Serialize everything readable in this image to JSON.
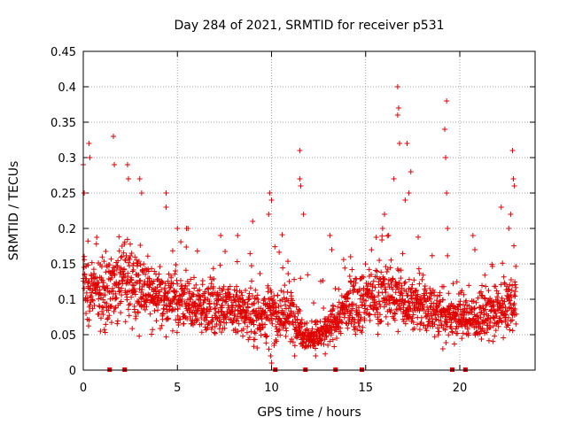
{
  "chart_data": {
    "type": "scatter",
    "title": "Day 284 of 2021, SRMTID for receiver p531",
    "xlabel": "GPS time / hours",
    "ylabel": "SRMTID / TECUs",
    "xlim": [
      0,
      24
    ],
    "ylim": [
      0,
      0.45
    ],
    "x_ticks": [
      0,
      5,
      10,
      15,
      20
    ],
    "x_tick_labels": [
      "0",
      "5",
      "10",
      "15",
      "20"
    ],
    "y_ticks": [
      0,
      0.05,
      0.1,
      0.15,
      0.2,
      0.25,
      0.3,
      0.35,
      0.4,
      0.45
    ],
    "y_tick_labels": [
      "0",
      "0.05",
      "0.1",
      "0.15",
      "0.2",
      "0.25",
      "0.3",
      "0.35",
      "0.4",
      "0.45"
    ],
    "grid": true,
    "marker": "plus",
    "series_color": "#e00000",
    "zero_markers_x": [
      1.4,
      2.2,
      10.2,
      11.8,
      13.4,
      14.8,
      19.6,
      20.3
    ],
    "envelope": {
      "hours": [
        0,
        1,
        2,
        3,
        4,
        5,
        6,
        7,
        8,
        9,
        10,
        11,
        12,
        13,
        14,
        15,
        16,
        17,
        18,
        19,
        20,
        21,
        22,
        23
      ],
      "median": [
        0.12,
        0.11,
        0.13,
        0.12,
        0.1,
        0.1,
        0.09,
        0.09,
        0.085,
        0.08,
        0.08,
        0.08,
        0.045,
        0.055,
        0.09,
        0.1,
        0.11,
        0.1,
        0.09,
        0.08,
        0.075,
        0.075,
        0.08,
        0.1
      ],
      "spread": [
        0.04,
        0.04,
        0.045,
        0.04,
        0.035,
        0.035,
        0.03,
        0.03,
        0.03,
        0.03,
        0.035,
        0.035,
        0.015,
        0.02,
        0.03,
        0.035,
        0.035,
        0.035,
        0.03,
        0.03,
        0.025,
        0.025,
        0.03,
        0.035
      ]
    },
    "spikes": [
      {
        "x": 0.0,
        "y": 0.29
      },
      {
        "x": 0.05,
        "y": 0.25
      },
      {
        "x": 0.3,
        "y": 0.32
      },
      {
        "x": 0.35,
        "y": 0.3
      },
      {
        "x": 1.6,
        "y": 0.33
      },
      {
        "x": 1.65,
        "y": 0.29
      },
      {
        "x": 2.35,
        "y": 0.29
      },
      {
        "x": 2.4,
        "y": 0.27
      },
      {
        "x": 3.0,
        "y": 0.27
      },
      {
        "x": 3.1,
        "y": 0.25
      },
      {
        "x": 4.4,
        "y": 0.25
      },
      {
        "x": 4.4,
        "y": 0.23
      },
      {
        "x": 5.0,
        "y": 0.2
      },
      {
        "x": 9.9,
        "y": 0.25
      },
      {
        "x": 10.0,
        "y": 0.24
      },
      {
        "x": 9.85,
        "y": 0.22
      },
      {
        "x": 11.5,
        "y": 0.31
      },
      {
        "x": 11.5,
        "y": 0.27
      },
      {
        "x": 11.55,
        "y": 0.26
      },
      {
        "x": 11.7,
        "y": 0.22
      },
      {
        "x": 13.1,
        "y": 0.19
      },
      {
        "x": 13.2,
        "y": 0.17
      },
      {
        "x": 16.5,
        "y": 0.27
      },
      {
        "x": 16.7,
        "y": 0.4
      },
      {
        "x": 16.75,
        "y": 0.37
      },
      {
        "x": 16.7,
        "y": 0.36
      },
      {
        "x": 16.8,
        "y": 0.32
      },
      {
        "x": 17.2,
        "y": 0.32
      },
      {
        "x": 17.4,
        "y": 0.28
      },
      {
        "x": 17.3,
        "y": 0.25
      },
      {
        "x": 17.1,
        "y": 0.24
      },
      {
        "x": 19.3,
        "y": 0.38
      },
      {
        "x": 19.2,
        "y": 0.34
      },
      {
        "x": 19.25,
        "y": 0.3
      },
      {
        "x": 19.3,
        "y": 0.25
      },
      {
        "x": 19.35,
        "y": 0.2
      },
      {
        "x": 9.95,
        "y": 0.02
      },
      {
        "x": 10.0,
        "y": 0.01
      },
      {
        "x": 19.1,
        "y": 0.03
      },
      {
        "x": 20.7,
        "y": 0.19
      },
      {
        "x": 20.8,
        "y": 0.17
      },
      {
        "x": 22.2,
        "y": 0.23
      },
      {
        "x": 22.8,
        "y": 0.31
      },
      {
        "x": 22.85,
        "y": 0.27
      },
      {
        "x": 22.9,
        "y": 0.26
      },
      {
        "x": 22.7,
        "y": 0.22
      },
      {
        "x": 22.6,
        "y": 0.2
      },
      {
        "x": 15.9,
        "y": 0.2
      },
      {
        "x": 16.0,
        "y": 0.22
      },
      {
        "x": 14.2,
        "y": 0.16
      },
      {
        "x": 7.3,
        "y": 0.19
      },
      {
        "x": 8.2,
        "y": 0.19
      },
      {
        "x": 9.0,
        "y": 0.21
      }
    ]
  }
}
